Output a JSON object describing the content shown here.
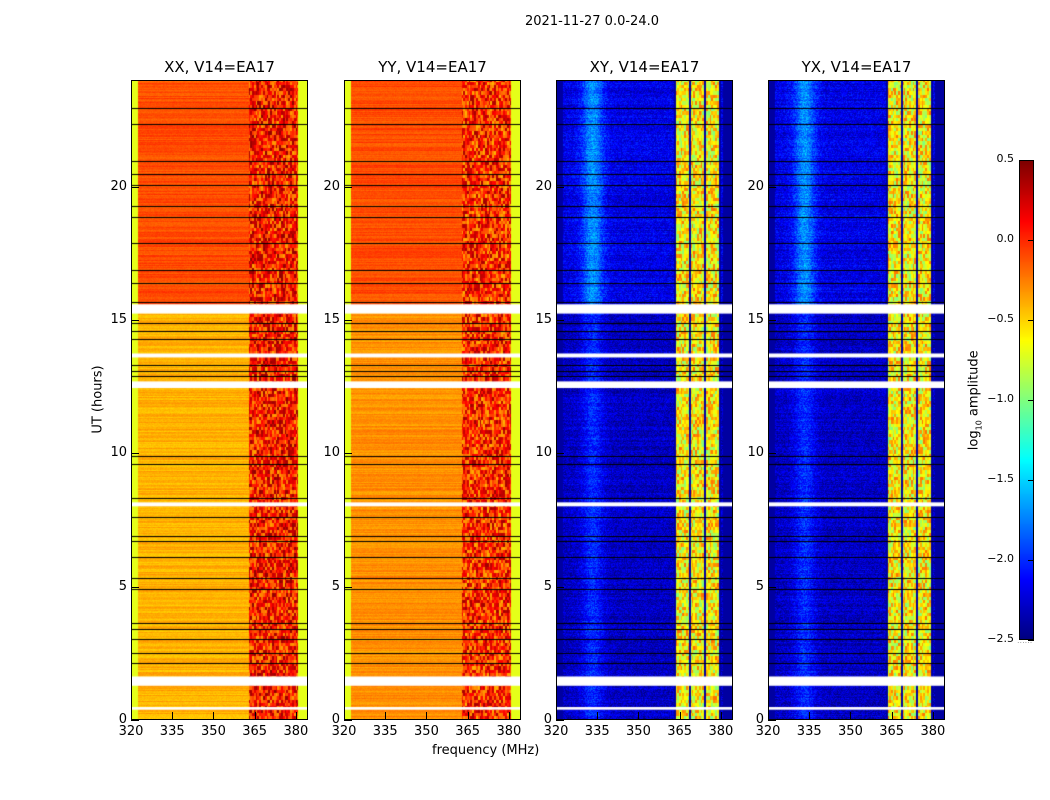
{
  "suptitle": "2021-11-27 0.0-24.0",
  "xlabel": "frequency (MHz)",
  "ylabel": "UT (hours)",
  "colorbar": {
    "label_prefix": "log",
    "label_sub": "10",
    "label_suffix": " amplitude",
    "ticks": [
      "0.5",
      "0.0",
      "−0.5",
      "−1.0",
      "−1.5",
      "−2.0",
      "−2.5"
    ],
    "tick_values": [
      0.5,
      0,
      -0.5,
      -1,
      -1.5,
      -2,
      -2.5
    ],
    "extend_marker": "......"
  },
  "chart_data": {
    "type": "heatmap",
    "colormap": "jet",
    "clim": [
      -2.5,
      0.5
    ],
    "xlim": [
      320,
      384.4
    ],
    "ylim": [
      0,
      24
    ],
    "xticks": [
      320,
      335,
      350,
      365,
      380
    ],
    "xtick_labels": [
      "320",
      "335",
      "350",
      "365",
      "380"
    ],
    "yticks": [
      0,
      5,
      10,
      15,
      20
    ],
    "ytick_labels": [
      "0",
      "5",
      "10",
      "15",
      "20"
    ],
    "flagged_white_hours": [
      [
        1.25,
        1.6
      ],
      [
        12.45,
        12.7
      ],
      [
        15.25,
        15.6
      ],
      [
        8.0,
        8.15
      ],
      [
        13.6,
        13.75
      ],
      [
        0.35,
        0.45
      ]
    ],
    "black_line_hours": [
      2.1,
      2.5,
      3.0,
      3.4,
      3.6,
      4.9,
      5.3,
      6.1,
      6.7,
      6.9,
      7.6,
      8.3,
      9.6,
      9.9,
      12.9,
      13.1,
      13.3,
      14.3,
      14.6,
      14.9,
      15.7,
      16.4,
      16.9,
      17.9,
      18.9,
      19.3,
      20.1,
      20.5,
      21.0,
      22.4,
      23.0
    ],
    "panels": [
      {
        "title": "XX, V14=EA17",
        "base_low": -0.4,
        "base_high": -0.1,
        "band": [
          363,
          381
        ],
        "band_level": 0.05,
        "edge_level": -0.7,
        "hump": null
      },
      {
        "title": "YY, V14=EA17",
        "base_low": -0.3,
        "base_high": -0.1,
        "band": [
          363,
          381
        ],
        "band_level": 0.0,
        "edge_level": -0.7,
        "hump": null
      },
      {
        "title": "XY, V14=EA17",
        "base_low": -2.3,
        "base_high": -2.2,
        "band": [
          363,
          380
        ],
        "band_level": -0.6,
        "edge_level": -2.4,
        "hump": [
          333,
          -1.7
        ]
      },
      {
        "title": "YX, V14=EA17",
        "base_low": -2.3,
        "base_high": -2.2,
        "band": [
          363,
          380
        ],
        "band_level": -0.6,
        "edge_level": -2.4,
        "hump": [
          333,
          -1.7
        ]
      }
    ]
  }
}
